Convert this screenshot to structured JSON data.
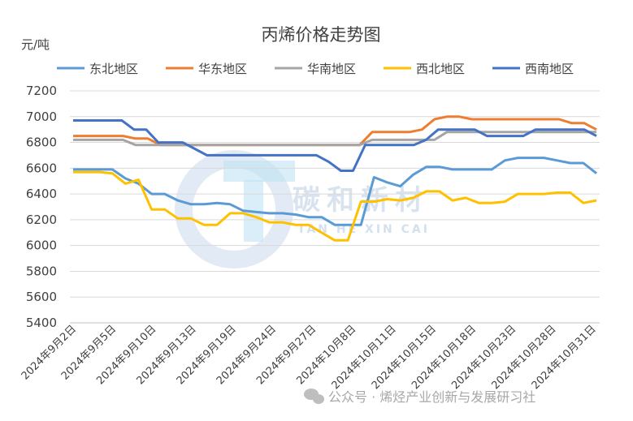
{
  "chart_data": {
    "type": "line",
    "title": "丙烯价格走势图",
    "unit_label": "元/吨",
    "ylim": [
      5400,
      7200
    ],
    "yticks": [
      5400,
      5600,
      5800,
      6000,
      6200,
      6400,
      6600,
      6800,
      7000,
      7200
    ],
    "grid": "horizontal",
    "legend_position": "top",
    "x_tick_labels": [
      "2024年9月2日",
      "2024年9月5日",
      "2024年9月10日",
      "2024年9月13日",
      "2024年9月19日",
      "2024年9月24日",
      "2024年9月27日",
      "2024年10月8日",
      "2024年10月11日",
      "2024年10月15日",
      "2024年10月18日",
      "2024年10月23日",
      "2024年10月28日",
      "2024年10月31日"
    ],
    "x_tick_index": [
      0,
      4,
      8,
      12,
      16,
      20,
      24,
      28,
      32,
      36,
      40,
      44,
      48,
      52
    ],
    "series": [
      {
        "name": "东北地区",
        "color": "#5b9bd5",
        "values": [
          6590,
          6590,
          6590,
          6590,
          6520,
          6480,
          6400,
          6400,
          6350,
          6320,
          6320,
          6330,
          6320,
          6270,
          6260,
          6250,
          6250,
          6240,
          6220,
          6220,
          6160,
          6160,
          6160,
          6530,
          6490,
          6460,
          6550,
          6610,
          6610,
          6590,
          6590,
          6590,
          6590,
          6660,
          6680,
          6680,
          6680,
          6660,
          6640,
          6640,
          6560
        ]
      },
      {
        "name": "华东地区",
        "color": "#ed7d31",
        "values": [
          6850,
          6850,
          6850,
          6850,
          6850,
          6830,
          6830,
          6780,
          6780,
          6780,
          6780,
          6780,
          6780,
          6780,
          6780,
          6780,
          6780,
          6780,
          6780,
          6780,
          6780,
          6780,
          6780,
          6780,
          6880,
          6880,
          6880,
          6880,
          6900,
          6980,
          7000,
          7000,
          6980,
          6980,
          6980,
          6980,
          6980,
          6980,
          6980,
          6980,
          6950,
          6950,
          6900
        ]
      },
      {
        "name": "华南地区",
        "color": "#a5a5a5",
        "values": [
          6820,
          6820,
          6820,
          6820,
          6820,
          6780,
          6780,
          6780,
          6780,
          6780,
          6780,
          6780,
          6780,
          6780,
          6780,
          6780,
          6780,
          6780,
          6780,
          6780,
          6780,
          6780,
          6780,
          6780,
          6820,
          6820,
          6820,
          6820,
          6820,
          6820,
          6880,
          6880,
          6880,
          6880,
          6880,
          6880,
          6880,
          6880,
          6880,
          6880,
          6880,
          6880,
          6880
        ]
      },
      {
        "name": "西北地区",
        "color": "#ffc000",
        "values": [
          6570,
          6570,
          6570,
          6560,
          6480,
          6510,
          6280,
          6280,
          6210,
          6210,
          6160,
          6160,
          6250,
          6250,
          6220,
          6180,
          6180,
          6160,
          6160,
          6100,
          6040,
          6040,
          6340,
          6340,
          6360,
          6350,
          6370,
          6420,
          6420,
          6350,
          6370,
          6330,
          6330,
          6340,
          6400,
          6400,
          6400,
          6410,
          6410,
          6330,
          6350
        ]
      },
      {
        "name": "西南地区",
        "color": "#4472c4",
        "values": [
          6970,
          6970,
          6970,
          6970,
          6970,
          6900,
          6900,
          6800,
          6800,
          6800,
          6750,
          6700,
          6700,
          6700,
          6700,
          6700,
          6700,
          6700,
          6700,
          6700,
          6700,
          6650,
          6580,
          6580,
          6780,
          6780,
          6780,
          6780,
          6780,
          6820,
          6900,
          6900,
          6900,
          6900,
          6850,
          6850,
          6850,
          6850,
          6900,
          6900,
          6900,
          6900,
          6900,
          6850
        ]
      }
    ]
  },
  "watermark": {
    "brand_cn": "碳和新材",
    "brand_pinyin": "TAN HE XIN CAI"
  },
  "footer": {
    "account_text": "公众号 · 烯烃产业创新与发展研习社",
    "icon": "wechat-icon"
  }
}
